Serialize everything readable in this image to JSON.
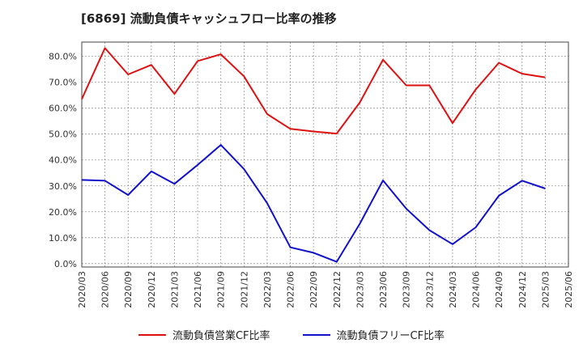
{
  "chart_data": {
    "type": "line",
    "title": "[6869]  流動負債キャッシュフロー比率の推移",
    "x": [
      "2020/03",
      "2020/06",
      "2020/09",
      "2020/12",
      "2021/03",
      "2021/06",
      "2021/09",
      "2021/12",
      "2022/03",
      "2022/06",
      "2022/09",
      "2022/12",
      "2023/03",
      "2023/06",
      "2023/09",
      "2023/12",
      "2024/03",
      "2024/06",
      "2024/09",
      "2024/12",
      "2025/03"
    ],
    "x_ticks": [
      "2020/03",
      "2020/06",
      "2020/09",
      "2020/12",
      "2021/03",
      "2021/06",
      "2021/09",
      "2021/12",
      "2022/03",
      "2022/06",
      "2022/09",
      "2022/12",
      "2023/03",
      "2023/06",
      "2023/09",
      "2023/12",
      "2024/03",
      "2024/06",
      "2024/09",
      "2024/12",
      "2025/03",
      "2025/06"
    ],
    "y_ticks": [
      "0.0%",
      "10.0%",
      "20.0%",
      "30.0%",
      "40.0%",
      "50.0%",
      "60.0%",
      "70.0%",
      "80.0%"
    ],
    "ylim": [
      0,
      0.8
    ],
    "grid": true,
    "legend_position": "bottom",
    "series": [
      {
        "name": "流動負債営業CF比率",
        "color": "#dd1111",
        "values": [
          0.635,
          0.832,
          0.73,
          0.767,
          0.655,
          0.782,
          0.808,
          0.723,
          0.577,
          0.52,
          0.51,
          0.502,
          0.622,
          0.787,
          0.688,
          0.688,
          0.542,
          0.672,
          0.775,
          0.733,
          0.719
        ]
      },
      {
        "name": "流動負債フリーCF比率",
        "color": "#1111cc",
        "values": [
          0.323,
          0.32,
          0.265,
          0.356,
          0.308,
          0.381,
          0.458,
          0.365,
          0.233,
          0.063,
          0.042,
          0.007,
          0.154,
          0.321,
          0.212,
          0.129,
          0.075,
          0.14,
          0.262,
          0.32,
          0.29
        ]
      }
    ]
  }
}
